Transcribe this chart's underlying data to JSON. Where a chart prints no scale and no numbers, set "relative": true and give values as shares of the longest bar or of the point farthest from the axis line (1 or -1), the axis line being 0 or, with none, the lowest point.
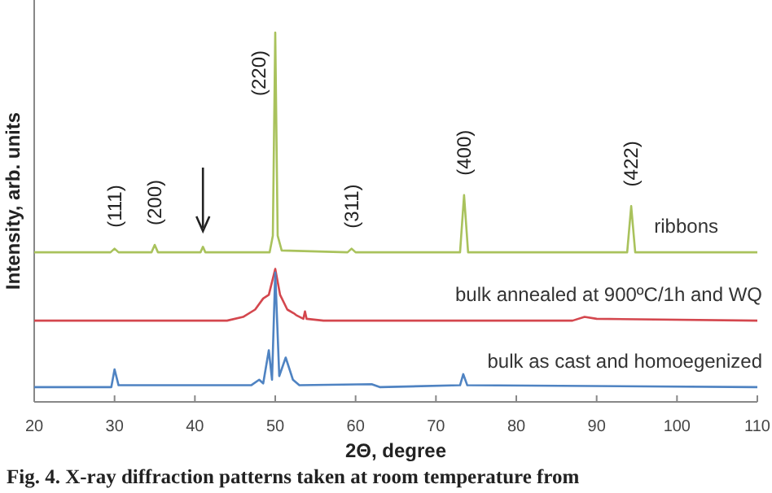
{
  "chart_data": {
    "type": "line",
    "relative": true,
    "xlabel": "2Θ, degree",
    "ylabel": "Intensity, arb. units",
    "xlim": [
      20,
      110
    ],
    "xticks": [
      20,
      30,
      40,
      50,
      60,
      70,
      80,
      90,
      100,
      110
    ],
    "tick_labels": "x",
    "grid": false,
    "legend": false,
    "marker": "none",
    "line_style": "solid",
    "series": [
      {
        "name": "ribbons",
        "color": "#a9c25c",
        "x": [
          20,
          29.5,
          30,
          30.5,
          34.6,
          35,
          35.4,
          40.7,
          41,
          41.3,
          49.3,
          49.7,
          50,
          50.3,
          50.8,
          59,
          59.5,
          60,
          73,
          73.5,
          74,
          93.8,
          94.3,
          94.8,
          110
        ],
        "values": [
          0.405,
          0.405,
          0.415,
          0.405,
          0.405,
          0.425,
          0.405,
          0.405,
          0.42,
          0.405,
          0.405,
          0.45,
          1.0,
          0.45,
          0.41,
          0.405,
          0.415,
          0.405,
          0.405,
          0.56,
          0.405,
          0.405,
          0.53,
          0.405,
          0.405
        ]
      },
      {
        "name": "bulk annealed at 900ºC/1h and WQ",
        "color": "#d4474e",
        "x": [
          20,
          44,
          46,
          47.5,
          48.5,
          49.2,
          50,
          50.6,
          51.5,
          52.3,
          52.6,
          53.5,
          53.7,
          53.9,
          56,
          87,
          88.5,
          90,
          110
        ],
        "values": [
          0.22,
          0.22,
          0.23,
          0.25,
          0.28,
          0.29,
          0.36,
          0.29,
          0.25,
          0.24,
          0.235,
          0.225,
          0.245,
          0.225,
          0.22,
          0.22,
          0.23,
          0.225,
          0.22
        ]
      },
      {
        "name": "bulk as cast and homoegenized",
        "color": "#4f83c2",
        "x": [
          20,
          29.6,
          30,
          30.5,
          47,
          48,
          48.5,
          49.2,
          49.6,
          50,
          50.5,
          51.3,
          52.2,
          53,
          62,
          63,
          73,
          73.4,
          73.9,
          110
        ],
        "values": [
          0.04,
          0.04,
          0.088,
          0.045,
          0.045,
          0.06,
          0.05,
          0.14,
          0.06,
          0.35,
          0.07,
          0.12,
          0.06,
          0.045,
          0.048,
          0.04,
          0.045,
          0.075,
          0.045,
          0.04
        ]
      }
    ],
    "annotations": [
      {
        "text": "(111)",
        "x": 30,
        "y": 0.415
      },
      {
        "text": "(200)",
        "x": 35,
        "y": 0.425
      },
      {
        "text": "(220)",
        "x": 50,
        "y": 1.0
      },
      {
        "text": "(311)",
        "x": 59.5,
        "y": 0.415
      },
      {
        "text": "(400)",
        "x": 73.5,
        "y": 0.56
      },
      {
        "text": "(422)",
        "x": 94.3,
        "y": 0.53
      },
      "Fig. 4. X-ray diffraction patterns taken at room temperature from"
    ]
  }
}
